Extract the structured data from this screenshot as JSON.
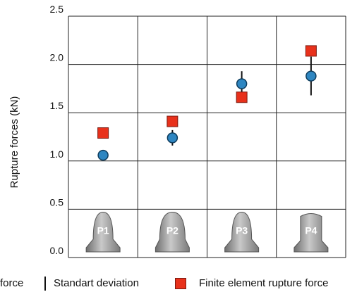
{
  "chart_data": {
    "type": "scatter",
    "title": "",
    "xlabel": "",
    "ylabel": "Rupture forces (kN)",
    "ylim": [
      0,
      2.5
    ],
    "yticks": [
      "0.0",
      "0.5",
      "1.0",
      "1.5",
      "2.0",
      "2.5"
    ],
    "grid": true,
    "categories": [
      "P1",
      "P2",
      "P3",
      "P4"
    ],
    "series": [
      {
        "name": "force",
        "marker": "circle",
        "color": "#2e86c1",
        "values": [
          1.06,
          1.24,
          1.8,
          1.88
        ],
        "std": [
          0.0,
          0.08,
          0.13,
          0.2
        ]
      },
      {
        "name": "Finite element rupture force",
        "marker": "square",
        "color": "#e8311b",
        "values": [
          1.29,
          1.41,
          1.66,
          2.14
        ]
      }
    ],
    "legend": {
      "position": "bottom",
      "entries": [
        "force",
        "Standart deviation",
        "Finite element rupture force"
      ]
    }
  }
}
